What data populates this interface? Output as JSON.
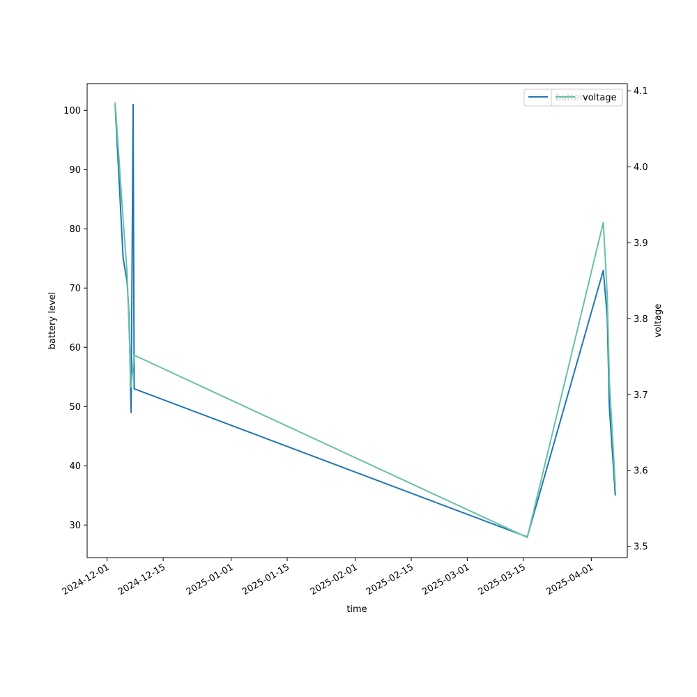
{
  "chart_data": {
    "type": "line",
    "title": "",
    "xlabel": "time",
    "ylabel": "battery level",
    "y2label": "voltage",
    "x_type": "date",
    "xlim": [
      "2024-11-26",
      "2025-04-10"
    ],
    "ylim": [
      24.5,
      104.5
    ],
    "y2lim": [
      3.4855,
      4.1095
    ],
    "x_ticks": [
      "2024-12-01",
      "2024-12-15",
      "2025-01-01",
      "2025-01-15",
      "2025-02-01",
      "2025-02-15",
      "2025-03-01",
      "2025-03-15",
      "2025-04-01"
    ],
    "y_ticks": [
      30,
      40,
      50,
      60,
      70,
      80,
      90,
      100
    ],
    "y2_ticks": [
      3.5,
      3.6,
      3.7,
      3.8,
      3.9,
      4.0,
      4.1
    ],
    "grid": false,
    "legend_position": "top-right",
    "series": [
      {
        "name": "battery",
        "axis": "left",
        "color": "#1f77b4",
        "points": [
          {
            "x": "2024-12-03",
            "y": 101
          },
          {
            "x": "2024-12-05",
            "y": 75
          },
          {
            "x": "2024-12-06",
            "y": 71
          },
          {
            "x": "2024-12-06T12:00",
            "y": 65
          },
          {
            "x": "2024-12-07",
            "y": 49
          },
          {
            "x": "2024-12-07T12:00",
            "y": 101
          },
          {
            "x": "2024-12-07T18:00",
            "y": 53
          },
          {
            "x": "2025-03-16",
            "y": 28
          },
          {
            "x": "2025-04-04",
            "y": 73
          },
          {
            "x": "2025-04-05",
            "y": 65
          },
          {
            "x": "2025-04-05T12:00",
            "y": 50
          },
          {
            "x": "2025-04-07",
            "y": 35
          }
        ]
      },
      {
        "name": "voltage",
        "axis": "right",
        "color": "#66c2a5",
        "points": [
          {
            "x": "2024-12-03",
            "y": 4.085
          },
          {
            "x": "2024-12-05",
            "y": 3.93
          },
          {
            "x": "2024-12-06",
            "y": 3.86
          },
          {
            "x": "2024-12-07",
            "y": 3.71
          },
          {
            "x": "2024-12-07T18:00",
            "y": 3.752
          },
          {
            "x": "2025-03-16",
            "y": 3.512
          },
          {
            "x": "2025-04-04",
            "y": 3.927
          },
          {
            "x": "2025-04-05",
            "y": 3.83
          },
          {
            "x": "2025-04-05T12:00",
            "y": 3.72
          },
          {
            "x": "2025-04-07",
            "y": 3.58
          }
        ]
      }
    ]
  }
}
